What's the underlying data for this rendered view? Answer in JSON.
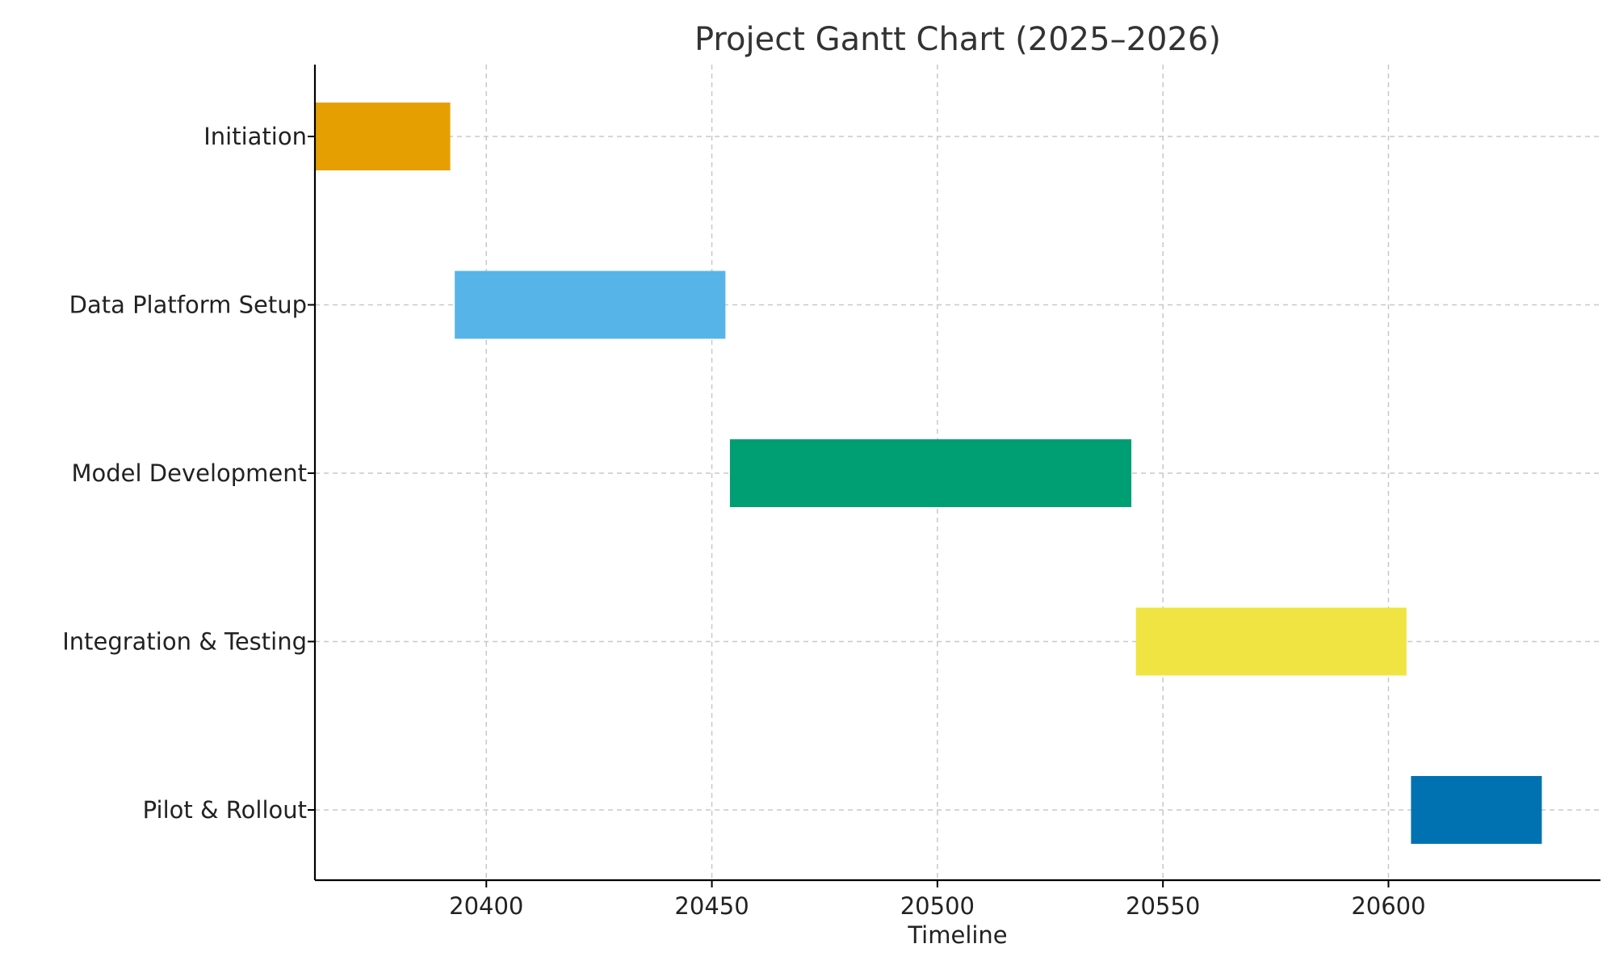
{
  "chart_data": {
    "type": "bar",
    "orientation": "horizontal-gantt",
    "title": "Project Gantt Chart (2025–2026)",
    "xlabel": "Timeline",
    "ylabel": "",
    "xlim": [
      20362,
      20647
    ],
    "xticks": [
      20400,
      20450,
      20500,
      20550,
      20600
    ],
    "grid": true,
    "tasks": [
      {
        "name": "Initiation",
        "start": 20362,
        "end": 20392,
        "color": "#E69F00"
      },
      {
        "name": "Data Platform Setup",
        "start": 20393,
        "end": 20453,
        "color": "#56B4E9"
      },
      {
        "name": "Model Development",
        "start": 20454,
        "end": 20543,
        "color": "#009E73"
      },
      {
        "name": "Integration & Testing",
        "start": 20544,
        "end": 20604,
        "color": "#F0E442"
      },
      {
        "name": "Pilot & Rollout",
        "start": 20605,
        "end": 20634,
        "color": "#0072B2"
      }
    ]
  }
}
